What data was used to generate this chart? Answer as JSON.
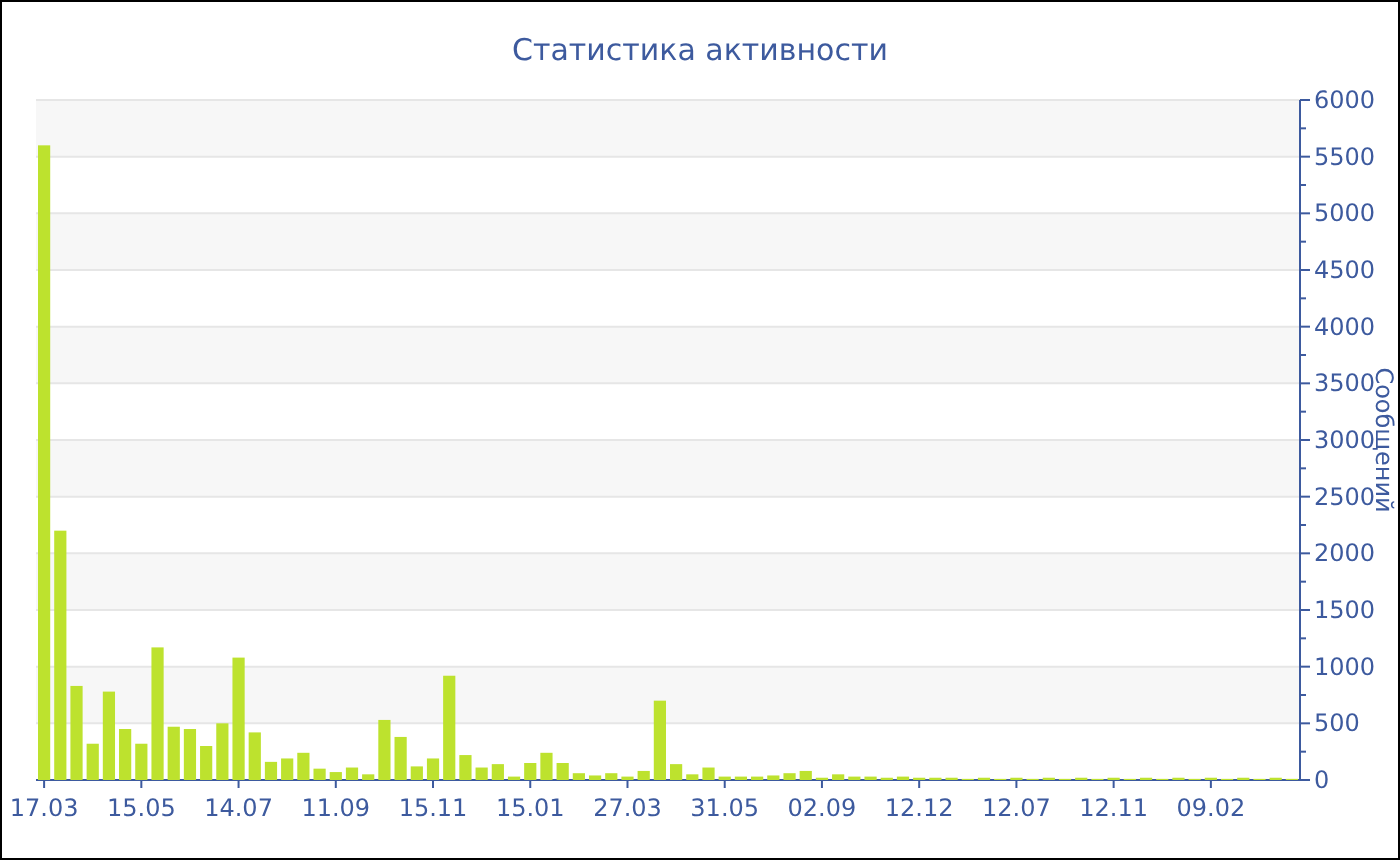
{
  "chart_data": {
    "type": "bar",
    "title": "Статистика активности",
    "ylabel": "Сообщений",
    "color": "#bde22e",
    "categories": [
      "17.03",
      null,
      null,
      null,
      null,
      null,
      "15.05",
      null,
      null,
      null,
      null,
      null,
      "14.07",
      null,
      null,
      null,
      null,
      null,
      "11.09",
      null,
      null,
      null,
      null,
      null,
      "15.11",
      null,
      null,
      null,
      null,
      null,
      "15.01",
      null,
      null,
      null,
      null,
      null,
      "27.03",
      null,
      null,
      null,
      null,
      null,
      "31.05",
      null,
      null,
      null,
      null,
      null,
      "02.09",
      null,
      null,
      null,
      null,
      null,
      "12.12",
      null,
      null,
      null,
      null,
      null,
      "12.07",
      null,
      null,
      null,
      null,
      null,
      "12.11",
      null,
      null,
      null,
      null,
      null,
      "09.02",
      null,
      null,
      null,
      null,
      null
    ],
    "values": [
      5600,
      2200,
      830,
      320,
      780,
      450,
      320,
      1170,
      470,
      450,
      300,
      500,
      1080,
      420,
      160,
      190,
      240,
      100,
      70,
      110,
      50,
      530,
      380,
      120,
      190,
      920,
      220,
      110,
      140,
      30,
      150,
      240,
      150,
      60,
      40,
      60,
      30,
      80,
      700,
      140,
      50,
      110,
      30,
      30,
      30,
      40,
      60,
      80,
      20,
      50,
      30,
      30,
      20,
      30,
      20,
      20,
      20,
      10,
      20,
      10,
      20,
      10,
      20,
      10,
      20,
      10,
      20,
      10,
      20,
      10,
      20,
      10,
      20,
      10,
      20,
      10,
      20,
      10
    ],
    "ylim": [
      0,
      6000
    ],
    "yticks": [
      0,
      {
        "value": 250,
        "label": null
      },
      500,
      {
        "value": 750,
        "label": null
      },
      1000,
      {
        "value": 1250,
        "label": null
      },
      1500,
      {
        "value": 1750,
        "label": null
      },
      2000,
      {
        "value": 2250,
        "label": null
      },
      2500,
      {
        "value": 2750,
        "label": null
      },
      3000,
      {
        "value": 3250,
        "label": null
      },
      3500,
      {
        "value": 3750,
        "label": null
      },
      4000,
      {
        "value": 4250,
        "label": null
      },
      4500,
      {
        "value": 4750,
        "label": null
      },
      5000,
      {
        "value": 5250,
        "label": null
      },
      5500,
      {
        "value": 5750,
        "label": null
      },
      6000
    ],
    "grid": "y"
  }
}
